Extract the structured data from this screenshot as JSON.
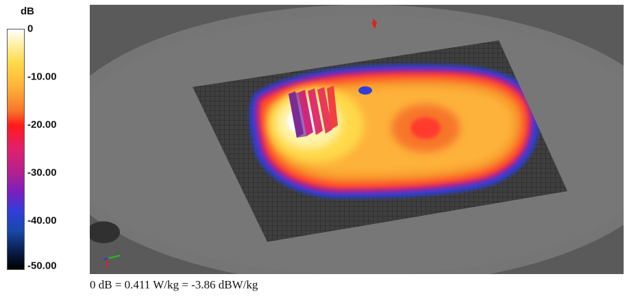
{
  "chart_data": {
    "type": "heatmap",
    "legend": {
      "unit": "dB",
      "ticks": [
        "0",
        "-10.00",
        "-20.00",
        "-30.00",
        "-40.00",
        "-50.00"
      ],
      "range": [
        -50,
        0
      ],
      "colors": [
        {
          "value": 0,
          "color": "#ffffff"
        },
        {
          "value": -3,
          "color": "#fff2a8"
        },
        {
          "value": -7,
          "color": "#ffd94a"
        },
        {
          "value": -12,
          "color": "#fdb23a"
        },
        {
          "value": -17,
          "color": "#f7762a"
        },
        {
          "value": -20,
          "color": "#ff1a1a"
        },
        {
          "value": -25,
          "color": "#e0206e"
        },
        {
          "value": -30,
          "color": "#b02090"
        },
        {
          "value": -34,
          "color": "#7a1fc0"
        },
        {
          "value": -38,
          "color": "#2f3fd8"
        },
        {
          "value": -42,
          "color": "#1848a8"
        },
        {
          "value": -46,
          "color": "#0a2050"
        },
        {
          "value": -50,
          "color": "#000000"
        }
      ]
    },
    "hotspots": [
      {
        "name": "peak",
        "value_db": 0
      },
      {
        "name": "secondary-peak",
        "value_db": -20
      }
    ],
    "footer": "0 dB = 0.411 W/kg = -3.86 dBW/kg"
  }
}
